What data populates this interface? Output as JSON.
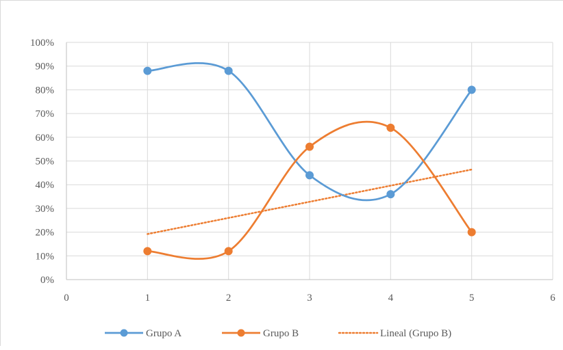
{
  "chart_data": {
    "type": "scatter",
    "title": "",
    "xlabel": "",
    "ylabel": "",
    "xlim": [
      0,
      6
    ],
    "ylim": [
      0,
      1
    ],
    "x_ticks": [
      0,
      1,
      2,
      3,
      4,
      5,
      6
    ],
    "y_ticks": [
      0,
      0.1,
      0.2,
      0.3,
      0.4,
      0.5,
      0.6,
      0.7,
      0.8,
      0.9,
      1.0
    ],
    "x_tick_labels": [
      "0",
      "1",
      "2",
      "3",
      "4",
      "5",
      "6"
    ],
    "y_tick_labels": [
      "0%",
      "10%",
      "20%",
      "30%",
      "40%",
      "50%",
      "60%",
      "70%",
      "80%",
      "90%",
      "100%"
    ],
    "grid": true,
    "smooth_lines": true,
    "legend_position": "bottom",
    "series": [
      {
        "name": "Grupo A",
        "color": "#5b9bd5",
        "marker": "circle",
        "x": [
          1,
          2,
          3,
          4,
          5
        ],
        "y": [
          0.88,
          0.88,
          0.44,
          0.36,
          0.8
        ]
      },
      {
        "name": "Grupo B",
        "color": "#ed7d31",
        "marker": "circle",
        "x": [
          1,
          2,
          3,
          4,
          5
        ],
        "y": [
          0.12,
          0.12,
          0.56,
          0.64,
          0.2
        ]
      }
    ],
    "trendline": {
      "name": "Lineal (Grupo B)",
      "of_series": "Grupo B",
      "color": "#ed7d31",
      "style": "dotted",
      "x": [
        1,
        5
      ],
      "y": [
        0.192,
        0.464
      ]
    }
  }
}
